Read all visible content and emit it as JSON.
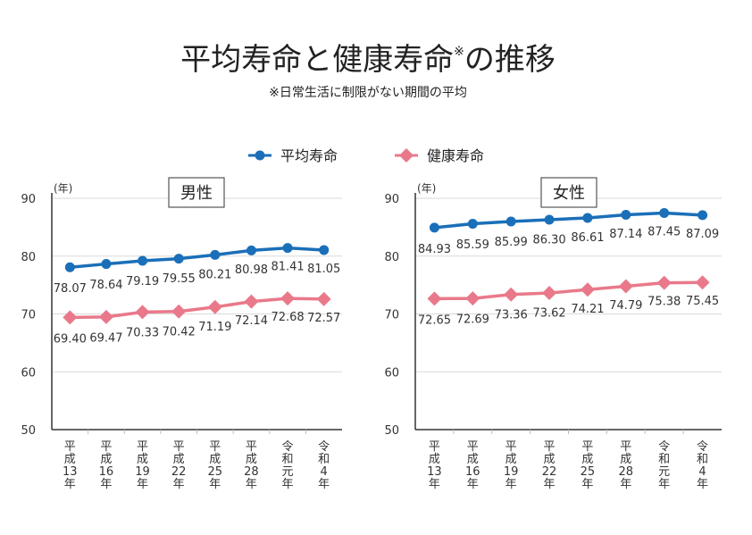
{
  "title": {
    "main": "平均寿命と健康寿命",
    "mark": "※",
    "tail": "の推移"
  },
  "subtitle": "※日常生活に制限がない期間の平均",
  "legend": [
    {
      "name": "平均寿命",
      "color": "#1a6fb8",
      "marker": "circle"
    },
    {
      "name": "健康寿命",
      "color": "#e9798a",
      "marker": "diamond"
    }
  ],
  "chart_data": [
    {
      "type": "line",
      "title": "男性",
      "ylabel": "(年)",
      "ylim": [
        50,
        90
      ],
      "yticks": [
        50,
        60,
        70,
        80,
        90
      ],
      "grid": true,
      "categories": [
        "平成13年",
        "平成16年",
        "平成19年",
        "平成22年",
        "平成25年",
        "平成28年",
        "令和元年",
        "令和4年"
      ],
      "series": [
        {
          "name": "平均寿命",
          "values": [
            78.07,
            78.64,
            79.19,
            79.55,
            80.21,
            80.98,
            81.41,
            81.05
          ],
          "labels": [
            "78.07",
            "78.64",
            "79.19",
            "79.55",
            "80.21",
            "80.98",
            "81.41",
            "81.05"
          ]
        },
        {
          "name": "健康寿命",
          "values": [
            69.4,
            69.47,
            70.33,
            70.42,
            71.19,
            72.14,
            72.68,
            72.57
          ],
          "labels": [
            "69.40",
            "69.47",
            "70.33",
            "70.42",
            "71.19",
            "72.14",
            "72.68",
            "72.57"
          ]
        }
      ]
    },
    {
      "type": "line",
      "title": "女性",
      "ylabel": "(年)",
      "ylim": [
        50,
        90
      ],
      "yticks": [
        50,
        60,
        70,
        80,
        90
      ],
      "grid": true,
      "categories": [
        "平成13年",
        "平成16年",
        "平成19年",
        "平成22年",
        "平成25年",
        "平成28年",
        "令和元年",
        "令和4年"
      ],
      "series": [
        {
          "name": "平均寿命",
          "values": [
            84.93,
            85.59,
            85.99,
            86.3,
            86.61,
            87.14,
            87.45,
            87.09
          ],
          "labels": [
            "84.93",
            "85.59",
            "85.99",
            "86.30",
            "86.61",
            "87.14",
            "87.45",
            "87.09"
          ]
        },
        {
          "name": "健康寿命",
          "values": [
            72.65,
            72.69,
            73.36,
            73.62,
            74.21,
            74.79,
            75.38,
            75.45
          ],
          "labels": [
            "72.65",
            "72.69",
            "73.36",
            "73.62",
            "74.21",
            "74.79",
            "75.38",
            "75.45"
          ]
        }
      ]
    }
  ]
}
